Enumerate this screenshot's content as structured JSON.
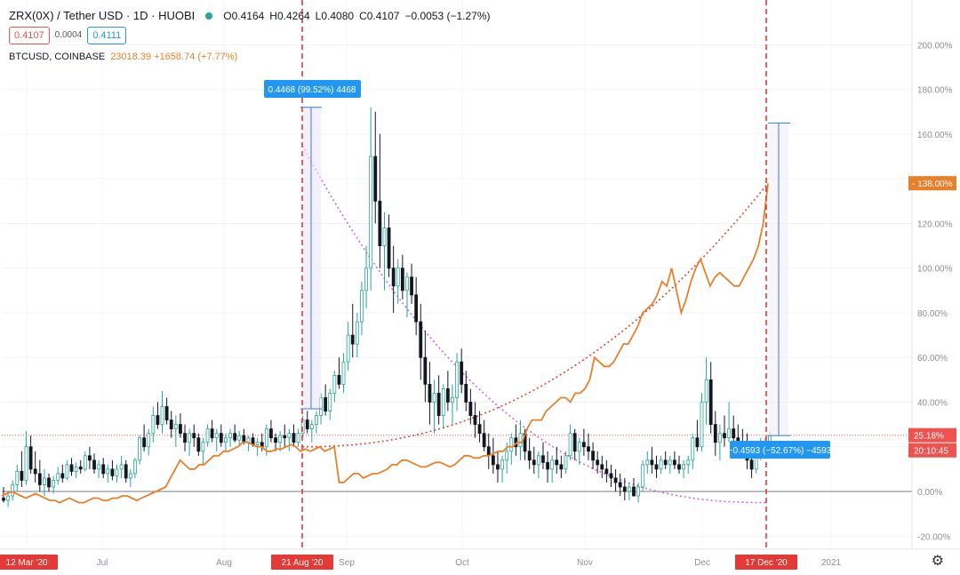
{
  "header": {
    "symbol": "ZRX(0X) / Tether USD · 1D · HUOBI",
    "ohlc": [
      {
        "k": "O",
        "v": "0.4164"
      },
      {
        "k": "H",
        "v": "0.4264"
      },
      {
        "k": "L",
        "v": "0.4080"
      },
      {
        "k": "C",
        "v": "0.4107"
      }
    ],
    "change": "−0.0053 (−1.27%)",
    "sell_price": "0.4107",
    "spread": "0.0004",
    "buy_price": "0.4111",
    "compare_name": "BTCUSD, COINBASE",
    "compare_value": "23018.39 +1658.74 (+7.77%)"
  },
  "colors": {
    "up": "#26a69a",
    "down": "#131722",
    "btc": "#e8802b",
    "marker": "#e53935",
    "fit": "#d163e6",
    "measure": "#2f7fd3",
    "accent_blue": "#2196f3"
  },
  "chart_data": {
    "type": "line",
    "ylabel": "",
    "ylim": [
      -25,
      210
    ],
    "y_ticks": [
      "-20.00%",
      "0.00%",
      "20.00%",
      "40.00%",
      "60.00%",
      "80.00%",
      "100.00%",
      "120.00%",
      "140.00%",
      "160.00%",
      "180.00%",
      "200.00%"
    ],
    "x_ticks": [
      "12 Mar '20",
      "Jul",
      "Aug",
      "21 Aug '20",
      "Sep",
      "Oct",
      "Nov",
      "Dec",
      "17 Dec '20",
      "2021"
    ],
    "last_labels": {
      "btc": "138.00%",
      "zrx": "25.18%",
      "countdown": "20:10:45"
    },
    "measurements": [
      {
        "label": "0.4468 (99.52%) 4468",
        "from_pct": 37,
        "to_pct": 172
      },
      {
        "label": "−0.4593 (−52.67%) −4593",
        "from_pct": 165,
        "to_pct": 25
      }
    ],
    "series": [
      {
        "name": "ZRX(0X) / Tether USD",
        "kind": "candles",
        "points": [
          [
            -3,
            2,
            -5,
            -4
          ],
          [
            -4,
            0,
            -7,
            -2
          ],
          [
            -2,
            5,
            -4,
            3
          ],
          [
            3,
            12,
            0,
            9
          ],
          [
            9,
            18,
            2,
            5
          ],
          [
            5,
            27,
            3,
            20
          ],
          [
            20,
            25,
            8,
            10
          ],
          [
            10,
            18,
            4,
            8
          ],
          [
            8,
            14,
            0,
            3
          ],
          [
            3,
            10,
            -2,
            6
          ],
          [
            6,
            8,
            0,
            2
          ],
          [
            2,
            7,
            -1,
            5
          ],
          [
            5,
            11,
            3,
            8
          ],
          [
            8,
            12,
            4,
            6
          ],
          [
            6,
            14,
            5,
            12
          ],
          [
            12,
            15,
            7,
            9
          ],
          [
            9,
            13,
            6,
            11
          ],
          [
            11,
            14,
            8,
            10
          ],
          [
            10,
            18,
            9,
            16
          ],
          [
            16,
            20,
            10,
            14
          ],
          [
            14,
            17,
            8,
            10
          ],
          [
            10,
            14,
            6,
            12
          ],
          [
            12,
            15,
            6,
            8
          ],
          [
            8,
            12,
            4,
            10
          ],
          [
            10,
            14,
            5,
            7
          ],
          [
            7,
            12,
            4,
            10
          ],
          [
            10,
            16,
            6,
            12
          ],
          [
            12,
            14,
            4,
            6
          ],
          [
            6,
            10,
            2,
            8
          ],
          [
            8,
            15,
            6,
            14
          ],
          [
            14,
            25,
            12,
            24
          ],
          [
            24,
            30,
            18,
            20
          ],
          [
            20,
            28,
            16,
            26
          ],
          [
            26,
            38,
            22,
            34
          ],
          [
            34,
            40,
            28,
            30
          ],
          [
            30,
            45,
            26,
            38
          ],
          [
            38,
            42,
            30,
            32
          ],
          [
            32,
            36,
            24,
            28
          ],
          [
            28,
            34,
            20,
            30
          ],
          [
            30,
            35,
            24,
            26
          ],
          [
            26,
            30,
            18,
            22
          ],
          [
            22,
            28,
            16,
            26
          ],
          [
            26,
            30,
            20,
            24
          ],
          [
            24,
            26,
            16,
            18
          ],
          [
            18,
            24,
            12,
            22
          ],
          [
            22,
            30,
            20,
            28
          ],
          [
            28,
            32,
            22,
            24
          ],
          [
            24,
            28,
            18,
            26
          ],
          [
            26,
            30,
            20,
            22
          ],
          [
            22,
            26,
            18,
            24
          ],
          [
            24,
            28,
            20,
            26
          ],
          [
            26,
            30,
            22,
            23
          ],
          [
            23,
            27,
            20,
            25
          ],
          [
            25,
            28,
            21,
            22
          ],
          [
            22,
            25,
            18,
            24
          ],
          [
            24,
            26,
            20,
            21
          ],
          [
            21,
            24,
            16,
            22
          ],
          [
            22,
            26,
            18,
            20
          ],
          [
            20,
            30,
            16,
            28
          ],
          [
            28,
            32,
            22,
            24
          ],
          [
            24,
            26,
            18,
            22
          ],
          [
            22,
            27,
            18,
            25
          ],
          [
            25,
            30,
            20,
            24
          ],
          [
            24,
            28,
            18,
            26
          ],
          [
            26,
            30,
            20,
            22
          ],
          [
            22,
            28,
            20,
            26
          ],
          [
            26,
            34,
            24,
            32
          ],
          [
            32,
            36,
            26,
            28
          ],
          [
            28,
            32,
            22,
            30
          ],
          [
            30,
            36,
            26,
            34
          ],
          [
            34,
            44,
            30,
            42
          ],
          [
            42,
            48,
            34,
            36
          ],
          [
            36,
            46,
            32,
            44
          ],
          [
            44,
            54,
            40,
            52
          ],
          [
            52,
            60,
            46,
            48
          ],
          [
            48,
            62,
            44,
            58
          ],
          [
            58,
            76,
            54,
            70
          ],
          [
            70,
            84,
            60,
            66
          ],
          [
            66,
            80,
            60,
            76
          ],
          [
            76,
            94,
            70,
            90
          ],
          [
            90,
            110,
            82,
            100
          ],
          [
            100,
            172,
            90,
            150
          ],
          [
            150,
            170,
            120,
            130
          ],
          [
            130,
            160,
            100,
            110
          ],
          [
            110,
            125,
            90,
            118
          ],
          [
            118,
            124,
            96,
            100
          ],
          [
            100,
            110,
            80,
            92
          ],
          [
            92,
            104,
            84,
            100
          ],
          [
            100,
            106,
            86,
            90
          ],
          [
            90,
            98,
            78,
            96
          ],
          [
            96,
            102,
            84,
            88
          ],
          [
            88,
            96,
            70,
            76
          ],
          [
            76,
            84,
            50,
            60
          ],
          [
            60,
            72,
            40,
            48
          ],
          [
            48,
            58,
            30,
            40
          ],
          [
            40,
            50,
            26,
            44
          ],
          [
            44,
            52,
            30,
            34
          ],
          [
            34,
            48,
            28,
            46
          ],
          [
            46,
            54,
            36,
            40
          ],
          [
            40,
            48,
            30,
            42
          ],
          [
            42,
            62,
            36,
            58
          ],
          [
            58,
            64,
            44,
            48
          ],
          [
            48,
            54,
            36,
            40
          ],
          [
            40,
            46,
            30,
            34
          ],
          [
            34,
            40,
            24,
            30
          ],
          [
            30,
            36,
            22,
            26
          ],
          [
            26,
            32,
            18,
            20
          ],
          [
            20,
            26,
            10,
            16
          ],
          [
            16,
            24,
            8,
            12
          ],
          [
            12,
            18,
            4,
            10
          ],
          [
            10,
            16,
            4,
            14
          ],
          [
            14,
            22,
            8,
            18
          ],
          [
            18,
            26,
            12,
            24
          ],
          [
            24,
            30,
            16,
            20
          ],
          [
            20,
            32,
            14,
            26
          ],
          [
            26,
            28,
            14,
            18
          ],
          [
            18,
            24,
            10,
            14
          ],
          [
            14,
            20,
            8,
            12
          ],
          [
            12,
            18,
            6,
            16
          ],
          [
            16,
            22,
            10,
            13
          ],
          [
            13,
            18,
            4,
            10
          ],
          [
            10,
            16,
            4,
            14
          ],
          [
            14,
            20,
            8,
            12
          ],
          [
            12,
            16,
            6,
            10
          ],
          [
            10,
            18,
            8,
            16
          ],
          [
            16,
            30,
            14,
            26
          ],
          [
            26,
            28,
            14,
            18
          ],
          [
            18,
            24,
            12,
            22
          ],
          [
            22,
            28,
            16,
            20
          ],
          [
            20,
            26,
            14,
            18
          ],
          [
            18,
            22,
            10,
            14
          ],
          [
            14,
            18,
            8,
            12
          ],
          [
            12,
            16,
            6,
            10
          ],
          [
            10,
            14,
            4,
            8
          ],
          [
            8,
            12,
            2,
            6
          ],
          [
            6,
            10,
            0,
            4
          ],
          [
            4,
            8,
            -2,
            2
          ],
          [
            2,
            6,
            -4,
            0
          ],
          [
            0,
            4,
            -4,
            2
          ],
          [
            2,
            6,
            -2,
            -2
          ],
          [
            -2,
            4,
            -5,
            2
          ],
          [
            2,
            14,
            0,
            12
          ],
          [
            12,
            18,
            8,
            14
          ],
          [
            14,
            20,
            8,
            12
          ],
          [
            12,
            16,
            6,
            10
          ],
          [
            10,
            16,
            8,
            14
          ],
          [
            14,
            18,
            10,
            12
          ],
          [
            12,
            16,
            8,
            14
          ],
          [
            14,
            18,
            10,
            12
          ],
          [
            12,
            16,
            8,
            10
          ],
          [
            10,
            14,
            6,
            12
          ],
          [
            12,
            16,
            8,
            14
          ],
          [
            14,
            26,
            10,
            24
          ],
          [
            24,
            32,
            18,
            20
          ],
          [
            20,
            44,
            18,
            40
          ],
          [
            40,
            60,
            30,
            50
          ],
          [
            50,
            58,
            26,
            30
          ],
          [
            30,
            36,
            16,
            22
          ],
          [
            22,
            30,
            14,
            26
          ],
          [
            26,
            34,
            20,
            24
          ],
          [
            24,
            40,
            22,
            28
          ],
          [
            28,
            34,
            20,
            24
          ],
          [
            24,
            30,
            18,
            22
          ],
          [
            22,
            28,
            16,
            20
          ],
          [
            20,
            26,
            10,
            14
          ],
          [
            14,
            20,
            6,
            10
          ],
          [
            10,
            18,
            8,
            16
          ],
          [
            16,
            24,
            14,
            20
          ],
          [
            20,
            24,
            16,
            22
          ],
          [
            22,
            27,
            20,
            25
          ]
        ]
      },
      {
        "name": "BTCUSD, COINBASE",
        "kind": "line",
        "values": [
          -2,
          -1,
          0,
          -1,
          -2,
          -3,
          -2,
          -1,
          -2,
          -3,
          -4,
          -4,
          -5,
          -4,
          -3,
          -4,
          -5,
          -5,
          -4,
          -3,
          -3,
          -4,
          -4,
          -3,
          -3,
          -2,
          -2,
          -3,
          -4,
          -3,
          -2,
          -1,
          0,
          1,
          2,
          6,
          10,
          14,
          12,
          10,
          10,
          12,
          12,
          14,
          16,
          16,
          18,
          18,
          19,
          20,
          22,
          22,
          21,
          20,
          20,
          18,
          18,
          19,
          19,
          20,
          21,
          20,
          18,
          19,
          18,
          19,
          20,
          18,
          19,
          20,
          4,
          4,
          6,
          8,
          8,
          6,
          7,
          8,
          8,
          9,
          10,
          12,
          12,
          14,
          14,
          13,
          12,
          11,
          11,
          12,
          13,
          13,
          12,
          11,
          12,
          14,
          16,
          16,
          15,
          15,
          16,
          16,
          17,
          18,
          18,
          20,
          20,
          22,
          22,
          28,
          32,
          32,
          32,
          36,
          38,
          40,
          42,
          42,
          40,
          44,
          44,
          46,
          50,
          60,
          58,
          56,
          56,
          58,
          62,
          66,
          66,
          70,
          74,
          80,
          82,
          84,
          88,
          94,
          92,
          100,
          90,
          80,
          86,
          94,
          100,
          104,
          98,
          92,
          96,
          98,
          96,
          94,
          92,
          92,
          96,
          100,
          104,
          110,
          120,
          138
        ]
      }
    ]
  }
}
